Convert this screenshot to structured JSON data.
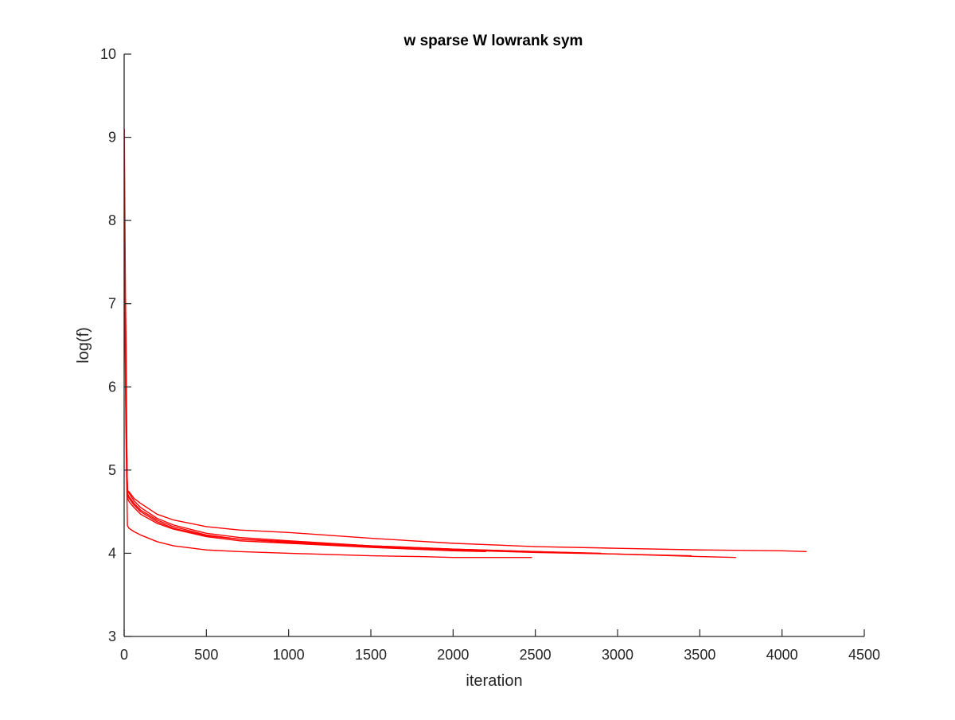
{
  "chart_data": {
    "type": "line",
    "title": "w sparse W lowrank sym",
    "xlabel": "iteration",
    "ylabel": "log(f)",
    "xlim": [
      0,
      4500
    ],
    "ylim": [
      3,
      10
    ],
    "xticks": [
      0,
      500,
      1000,
      1500,
      2000,
      2500,
      3000,
      3500,
      4000,
      4500
    ],
    "yticks": [
      3,
      4,
      5,
      6,
      7,
      8,
      9,
      10
    ],
    "xtick_labels": [
      "0",
      "500",
      "1000",
      "1500",
      "2000",
      "2500",
      "3000",
      "3500",
      "4000",
      "4500"
    ],
    "ytick_labels": [
      "3",
      "4",
      "5",
      "6",
      "7",
      "8",
      "9",
      "10"
    ],
    "grid": false,
    "line_color": "#ff0000",
    "axis_color": "#262626",
    "series": [
      {
        "x": [
          1,
          4,
          8,
          12,
          15,
          18,
          22,
          30,
          60,
          100,
          200,
          300,
          500,
          700,
          1000,
          1500,
          2000,
          2500,
          3000,
          3500,
          4000,
          4150
        ],
        "y": [
          9.1,
          8.2,
          7.1,
          6.5,
          5.7,
          4.9,
          4.75,
          4.74,
          4.66,
          4.6,
          4.47,
          4.4,
          4.32,
          4.28,
          4.25,
          4.18,
          4.12,
          4.08,
          4.06,
          4.04,
          4.03,
          4.02
        ]
      },
      {
        "x": [
          1,
          3,
          6,
          10,
          15,
          20,
          30,
          60,
          100,
          200,
          300,
          500,
          700,
          1000,
          1500,
          2000,
          2500,
          3000,
          3500,
          3720
        ],
        "y": [
          8.9,
          7.9,
          7.0,
          6.2,
          5.4,
          4.75,
          4.72,
          4.63,
          4.55,
          4.42,
          4.34,
          4.24,
          4.19,
          4.15,
          4.09,
          4.05,
          4.02,
          3.99,
          3.96,
          3.95
        ]
      },
      {
        "x": [
          1,
          3,
          6,
          10,
          15,
          20,
          30,
          60,
          100,
          200,
          300,
          500,
          700,
          1000,
          1500,
          2000,
          2500,
          3000,
          3450
        ],
        "y": [
          8.8,
          7.7,
          6.9,
          6.0,
          5.3,
          4.72,
          4.68,
          4.6,
          4.52,
          4.4,
          4.32,
          4.22,
          4.17,
          4.13,
          4.08,
          4.04,
          4.01,
          3.99,
          3.97
        ]
      },
      {
        "x": [
          1,
          3,
          6,
          10,
          15,
          20,
          30,
          60,
          100,
          200,
          300,
          500,
          700,
          1000,
          1500,
          2000,
          2500,
          2900
        ],
        "y": [
          8.7,
          7.6,
          6.8,
          5.9,
          5.2,
          4.7,
          4.66,
          4.58,
          4.5,
          4.38,
          4.3,
          4.21,
          4.17,
          4.14,
          4.09,
          4.05,
          4.02,
          4.0
        ]
      },
      {
        "x": [
          1,
          3,
          6,
          10,
          15,
          20,
          30,
          60,
          100,
          200,
          300,
          500,
          700,
          1000,
          1500,
          2000,
          2200
        ],
        "y": [
          8.6,
          7.5,
          6.7,
          5.8,
          5.1,
          4.66,
          4.62,
          4.55,
          4.47,
          4.36,
          4.29,
          4.2,
          4.15,
          4.12,
          4.07,
          4.03,
          4.02
        ]
      },
      {
        "x": [
          1,
          3,
          6,
          10,
          15,
          20,
          30,
          60,
          100,
          200,
          300,
          500,
          700,
          1000,
          1500,
          1800,
          2000,
          2480
        ],
        "y": [
          8.4,
          7.3,
          6.5,
          5.6,
          4.9,
          4.33,
          4.3,
          4.26,
          4.22,
          4.14,
          4.09,
          4.04,
          4.02,
          4.0,
          3.97,
          3.96,
          3.95,
          3.95
        ]
      }
    ]
  }
}
